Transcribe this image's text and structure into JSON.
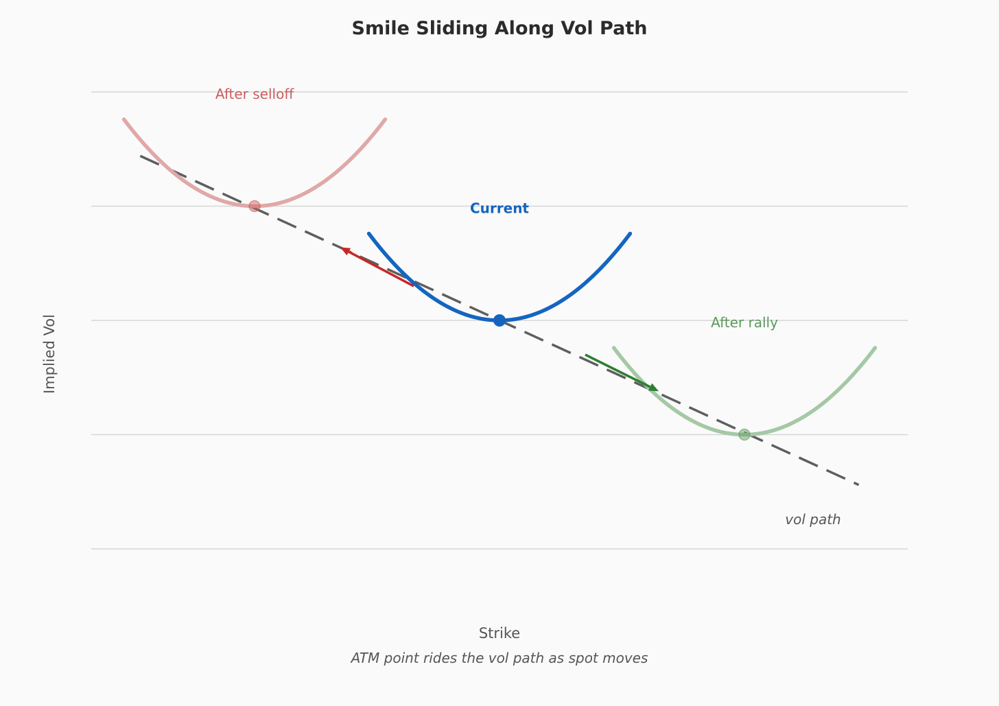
{
  "chart_data": {
    "type": "line",
    "title": "Smile Sliding Along Vol Path",
    "xlabel": "Strike",
    "ylabel": "Implied Vol",
    "caption": "ATM point rides the vol path as spot moves",
    "grid": true,
    "xlim": [
      0,
      100
    ],
    "ylim": [
      0,
      100
    ],
    "yticks": [
      0,
      25,
      50,
      75,
      100
    ],
    "vol_path": {
      "label": "vol path",
      "color": "#5e5e5e",
      "start": [
        6,
        86
      ],
      "end": [
        94,
        14
      ]
    },
    "series": [
      {
        "name": "After selloff",
        "label": "After selloff",
        "color": "#cd5c5c",
        "curve_color": "#e0a8a8",
        "opacity": 0.5,
        "atm": [
          20,
          75
        ],
        "halfwidth": 16,
        "wing_height": 19,
        "label_bold": false
      },
      {
        "name": "Current",
        "label": "Current",
        "color": "#1565c0",
        "curve_color": "#1565c0",
        "opacity": 1,
        "atm": [
          50,
          50
        ],
        "halfwidth": 16,
        "wing_height": 19,
        "label_bold": true
      },
      {
        "name": "After rally",
        "label": "After rally",
        "color": "#5a9a5a",
        "curve_color": "#a5c8a5",
        "opacity": 0.5,
        "atm": [
          80,
          25
        ],
        "halfwidth": 16,
        "wing_height": 19,
        "label_bold": false
      }
    ],
    "arrows": [
      {
        "name": "selloff-arrow",
        "color": "#c62828",
        "from": [
          39.5,
          57.5
        ],
        "to": [
          30.5,
          66
        ]
      },
      {
        "name": "rally-arrow",
        "color": "#2e7d32",
        "from": [
          60.5,
          42.5
        ],
        "to": [
          69.5,
          34.5
        ]
      }
    ]
  }
}
